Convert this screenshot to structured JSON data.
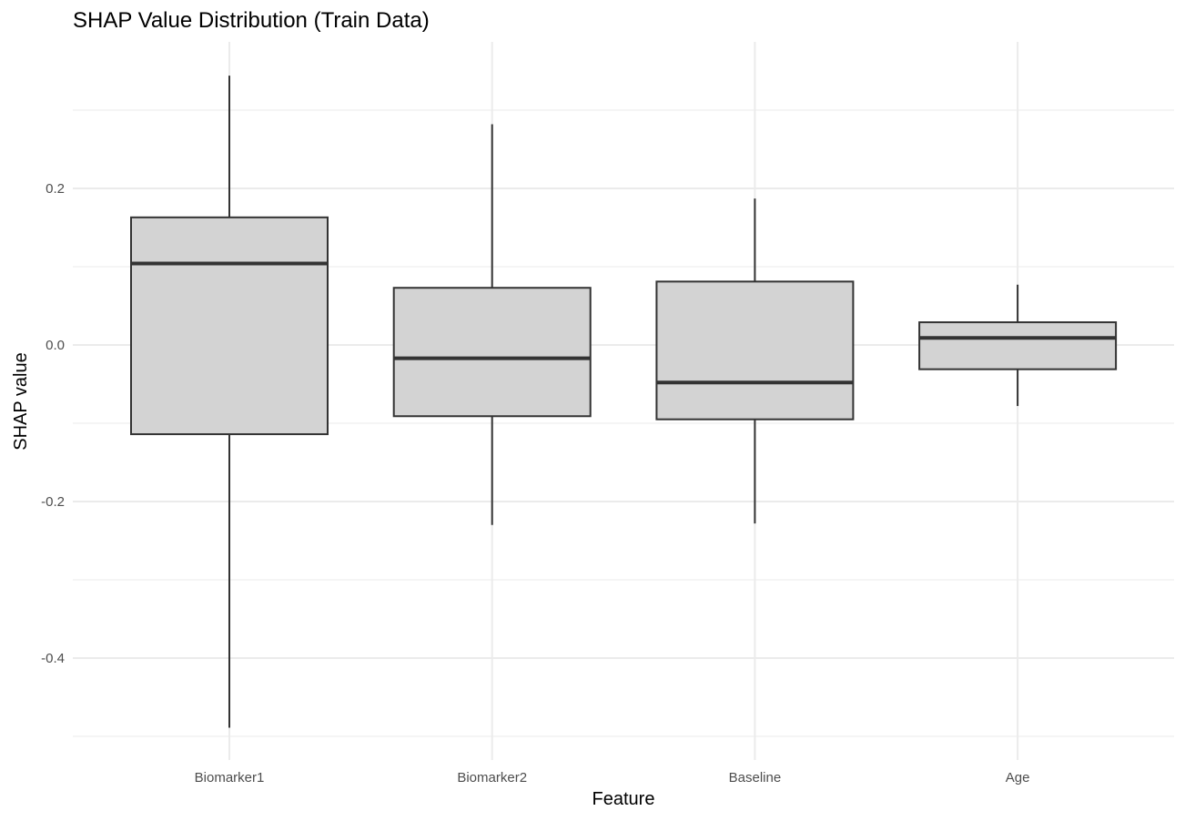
{
  "chart_data": {
    "type": "box",
    "title": "SHAP Value Distribution (Train Data)",
    "xlabel": "Feature",
    "ylabel": "SHAP value",
    "categories": [
      "Biomarker1",
      "Biomarker2",
      "Baseline",
      "Age"
    ],
    "y_ticks": [
      {
        "value": 0.2,
        "label": "0.2"
      },
      {
        "value": 0.0,
        "label": "0.0"
      },
      {
        "value": -0.2,
        "label": "-0.2"
      },
      {
        "value": -0.4,
        "label": "-0.4"
      }
    ],
    "ylim": [
      -0.5,
      0.38
    ],
    "grid": true,
    "box_fill": "#d3d3d3",
    "box_stroke": "#333333",
    "grid_color": "#ebebeb",
    "boxes": [
      {
        "category": "Biomarker1",
        "whisker_low": -0.489,
        "q1": -0.114,
        "median": 0.104,
        "q3": 0.163,
        "whisker_high": 0.344
      },
      {
        "category": "Biomarker2",
        "whisker_low": -0.23,
        "q1": -0.091,
        "median": -0.017,
        "q3": 0.073,
        "whisker_high": 0.282
      },
      {
        "category": "Baseline",
        "whisker_low": -0.228,
        "q1": -0.095,
        "median": -0.048,
        "q3": 0.081,
        "whisker_high": 0.187
      },
      {
        "category": "Age",
        "whisker_low": -0.078,
        "q1": -0.031,
        "median": 0.009,
        "q3": 0.029,
        "whisker_high": 0.077
      }
    ]
  }
}
